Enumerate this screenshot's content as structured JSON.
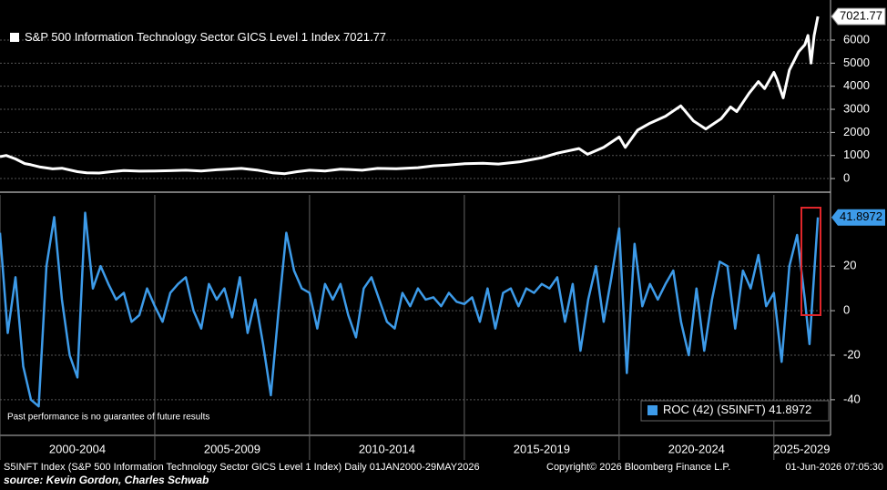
{
  "chart_data": [
    {
      "type": "line",
      "x": [
        2000.0,
        2000.2,
        2000.5,
        2000.8,
        2001.0,
        2001.3,
        2001.7,
        2002.0,
        2002.5,
        2002.8,
        2003.2,
        2003.6,
        2004.0,
        2004.5,
        2005.0,
        2005.5,
        2006.0,
        2006.5,
        2007.0,
        2007.8,
        2008.3,
        2008.8,
        2009.2,
        2009.6,
        2010.0,
        2010.5,
        2011.0,
        2011.7,
        2012.2,
        2012.8,
        2013.5,
        2014.0,
        2014.5,
        2015.0,
        2015.6,
        2016.1,
        2016.8,
        2017.5,
        2018.0,
        2018.7,
        2018.98,
        2019.5,
        2020.0,
        2020.2,
        2020.6,
        2021.0,
        2021.5,
        2021.99,
        2022.4,
        2022.8,
        2023.3,
        2023.6,
        2023.8,
        2024.2,
        2024.5,
        2024.7,
        2025.0,
        2025.1,
        2025.3,
        2025.5,
        2025.8,
        2026.0,
        2026.1,
        2026.2,
        2026.3,
        2026.42
      ],
      "series": [
        {
          "name": "S&P 500 Information Technology Sector GICS Level 1 Index",
          "color": "#ffffff",
          "values": [
            950,
            1000,
            850,
            650,
            600,
            500,
            420,
            450,
            300,
            250,
            240,
            300,
            350,
            320,
            330,
            340,
            360,
            330,
            380,
            440,
            370,
            250,
            210,
            300,
            360,
            330,
            410,
            360,
            440,
            430,
            470,
            550,
            590,
            640,
            660,
            630,
            730,
            900,
            1100,
            1300,
            1050,
            1350,
            1800,
            1350,
            2100,
            2400,
            2700,
            3150,
            2500,
            2150,
            2600,
            3100,
            2900,
            3700,
            4200,
            3900,
            4600,
            4300,
            3500,
            4700,
            5500,
            5800,
            6200,
            5000,
            6200,
            7021.77
          ]
        }
      ],
      "xlim": [
        2000,
        2026.8
      ],
      "ylim": [
        -550,
        7420
      ],
      "yticks": [
        0,
        1000,
        2000,
        3000,
        4000,
        5000,
        6000
      ],
      "grid": true
    },
    {
      "type": "line",
      "x": [
        2000.0,
        2000.25,
        2000.5,
        2000.75,
        2001.0,
        2001.25,
        2001.5,
        2001.75,
        2002.0,
        2002.25,
        2002.5,
        2002.75,
        2003.0,
        2003.25,
        2003.5,
        2003.75,
        2004.0,
        2004.25,
        2004.5,
        2004.75,
        2005.0,
        2005.25,
        2005.5,
        2005.75,
        2006.0,
        2006.25,
        2006.5,
        2006.75,
        2007.0,
        2007.25,
        2007.5,
        2007.75,
        2008.0,
        2008.25,
        2008.5,
        2008.75,
        2009.0,
        2009.25,
        2009.5,
        2009.75,
        2010.0,
        2010.25,
        2010.5,
        2010.75,
        2011.0,
        2011.25,
        2011.5,
        2011.75,
        2012.0,
        2012.25,
        2012.5,
        2012.75,
        2013.0,
        2013.25,
        2013.5,
        2013.75,
        2014.0,
        2014.25,
        2014.5,
        2014.75,
        2015.0,
        2015.25,
        2015.5,
        2015.75,
        2016.0,
        2016.25,
        2016.5,
        2016.75,
        2017.0,
        2017.25,
        2017.5,
        2017.75,
        2018.0,
        2018.25,
        2018.5,
        2018.75,
        2019.0,
        2019.25,
        2019.5,
        2019.75,
        2020.0,
        2020.25,
        2020.5,
        2020.75,
        2021.0,
        2021.25,
        2021.5,
        2021.75,
        2022.0,
        2022.25,
        2022.5,
        2022.75,
        2023.0,
        2023.25,
        2023.5,
        2023.75,
        2024.0,
        2024.25,
        2024.5,
        2024.75,
        2025.0,
        2025.25,
        2025.5,
        2025.75,
        2026.0,
        2026.15,
        2026.42
      ],
      "series": [
        {
          "name": "ROC (42) (S5INFT)",
          "color": "#3d9be9",
          "values": [
            35,
            -10,
            15,
            -25,
            -40,
            -43,
            20,
            42,
            5,
            -20,
            -30,
            44,
            10,
            20,
            12,
            5,
            8,
            -5,
            -2,
            10,
            2,
            -5,
            8,
            12,
            15,
            0,
            -8,
            12,
            5,
            10,
            -3,
            15,
            -10,
            5,
            -15,
            -38,
            0,
            35,
            18,
            10,
            8,
            -8,
            12,
            5,
            12,
            -2,
            -12,
            10,
            15,
            5,
            -5,
            -8,
            8,
            2,
            10,
            5,
            6,
            2,
            8,
            4,
            3,
            6,
            -5,
            10,
            -8,
            8,
            10,
            2,
            10,
            8,
            12,
            10,
            15,
            -5,
            12,
            -18,
            5,
            20,
            -5,
            15,
            37,
            -28,
            30,
            2,
            12,
            5,
            12,
            18,
            -5,
            -20,
            10,
            -18,
            5,
            22,
            20,
            -8,
            18,
            10,
            25,
            2,
            8,
            -23,
            20,
            34,
            5,
            -15,
            41.8972
          ]
        }
      ],
      "xlim": [
        2000,
        2026.8
      ],
      "ylim": [
        -56,
        52
      ],
      "yticks": [
        -40,
        -20,
        0,
        20
      ],
      "xticks": [
        {
          "value": 2000,
          "label": "2000-2004"
        },
        {
          "value": 2005,
          "label": "2005-2009"
        },
        {
          "value": 2010,
          "label": "2010-2014"
        },
        {
          "value": 2015,
          "label": "2015-2019"
        },
        {
          "value": 2020,
          "label": "2020-2024"
        },
        {
          "value": 2025,
          "label": "2025-2029"
        }
      ],
      "annotation": "Past performance is no guarantee of future results",
      "grid": true
    }
  ],
  "footer": {
    "description": "S5INFT Index (S&P 500 Information Technology Sector GICS Level 1 Index) Daily 01JAN2000-29MAY2026",
    "copyright": "Copyright© 2026 Bloomberg Finance L.P.",
    "timestamp": "01-Jun-2026 07:05:30",
    "source": "source: Kevin Gordon, Charles Schwab"
  }
}
